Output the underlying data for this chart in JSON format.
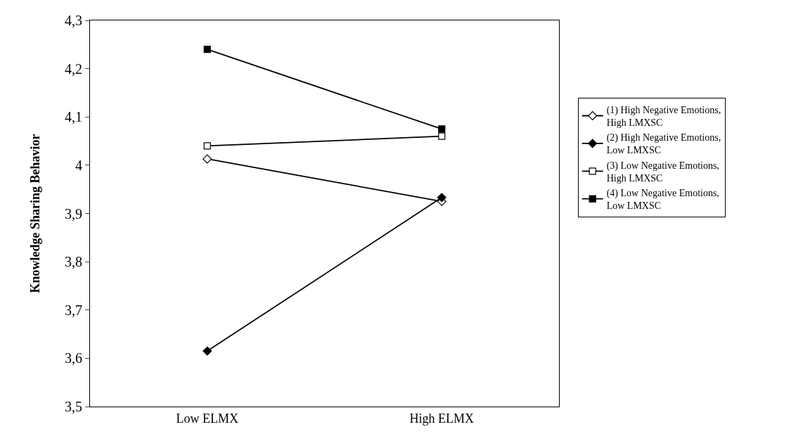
{
  "chart_data": {
    "type": "line",
    "ylabel": "Knowledge Sharing Behavior",
    "categories": [
      "Low ELMX",
      "High ELMX"
    ],
    "series": [
      {
        "name": "(1) High Negative Emotions, High LMXSC",
        "color": "#000000",
        "marker": "diamond-open",
        "values": [
          4.013,
          3.925
        ]
      },
      {
        "name": "(2) High Negative Emotions, Low LMXSC",
        "color": "#000000",
        "marker": "diamond",
        "values": [
          3.615,
          3.933
        ]
      },
      {
        "name": "(3) Low Negative Emotions, High LMXSC",
        "color": "#000000",
        "marker": "square-open",
        "values": [
          4.04,
          4.06
        ]
      },
      {
        "name": "(4) Low Negative Emotions, Low LMXSC",
        "color": "#000000",
        "marker": "square",
        "values": [
          4.24,
          4.075
        ]
      }
    ],
    "ylim": [
      3.5,
      4.3
    ],
    "yticks": [
      {
        "value": 3.5,
        "label": "3,5"
      },
      {
        "value": 3.6,
        "label": "3,6"
      },
      {
        "value": 3.7,
        "label": "3,7"
      },
      {
        "value": 3.8,
        "label": "3,8"
      },
      {
        "value": 3.9,
        "label": "3,9"
      },
      {
        "value": 4,
        "label": "4"
      },
      {
        "value": 4.1,
        "label": "4,1"
      },
      {
        "value": 4.2,
        "label": "4,2"
      },
      {
        "value": 4.3,
        "label": "4,3"
      }
    ],
    "legend": "right",
    "line_style": "solid"
  }
}
